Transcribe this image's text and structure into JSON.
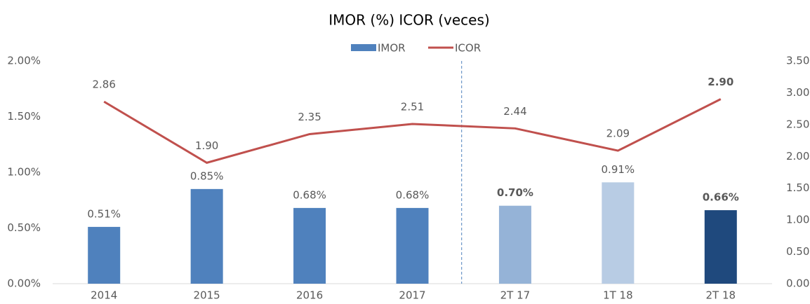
{
  "chart_data": {
    "type": "bar-line",
    "title": "IMOR (%)    ICOR (veces)",
    "categories": [
      "2014",
      "2015",
      "2016",
      "2017",
      "2T 17",
      "1T 18",
      "2T 18"
    ],
    "series": [
      {
        "name": "IMOR",
        "type": "bar",
        "color": "#4f81bd",
        "bar_colors": [
          "#4f81bd",
          "#4f81bd",
          "#4f81bd",
          "#4f81bd",
          "#95b3d7",
          "#b8cce4",
          "#1f497d"
        ],
        "values": [
          0.51,
          0.85,
          0.68,
          0.68,
          0.7,
          0.91,
          0.66
        ],
        "value_labels": [
          "0.51%",
          "0.85%",
          "0.68%",
          "0.68%",
          "0.70%",
          "0.91%",
          "0.66%"
        ],
        "label_bold": [
          false,
          false,
          false,
          false,
          true,
          false,
          true
        ]
      },
      {
        "name": "ICOR",
        "type": "line",
        "axis": "y2",
        "color": "#c0504d",
        "values": [
          2.86,
          1.9,
          2.35,
          2.51,
          2.44,
          2.09,
          2.9
        ],
        "value_labels": [
          "2.86",
          "1.90",
          "2.35",
          "2.51",
          "2.44",
          "2.09",
          "2.90"
        ],
        "label_bold": [
          false,
          false,
          false,
          false,
          false,
          false,
          true
        ]
      }
    ],
    "ylim": [
      0,
      2
    ],
    "yticks": [
      {
        "value": 0,
        "label": "0.00%"
      },
      {
        "value": 0.5,
        "label": "0.50%"
      },
      {
        "value": 1,
        "label": "1.00%"
      },
      {
        "value": 1.5,
        "label": "1.50%"
      },
      {
        "value": 2,
        "label": "2.00%"
      }
    ],
    "y2lim": [
      0,
      3.5
    ],
    "y2ticks": [
      {
        "value": 0,
        "label": "0.00"
      },
      {
        "value": 0.5,
        "label": "0.50"
      },
      {
        "value": 1,
        "label": "1.00"
      },
      {
        "value": 1.5,
        "label": "1.50"
      },
      {
        "value": 2,
        "label": "2.00"
      },
      {
        "value": 2.5,
        "label": "2.50"
      },
      {
        "value": 3,
        "label": "3.00"
      },
      {
        "value": 3.5,
        "label": "3.50"
      }
    ],
    "grid": false,
    "legend": "top"
  }
}
